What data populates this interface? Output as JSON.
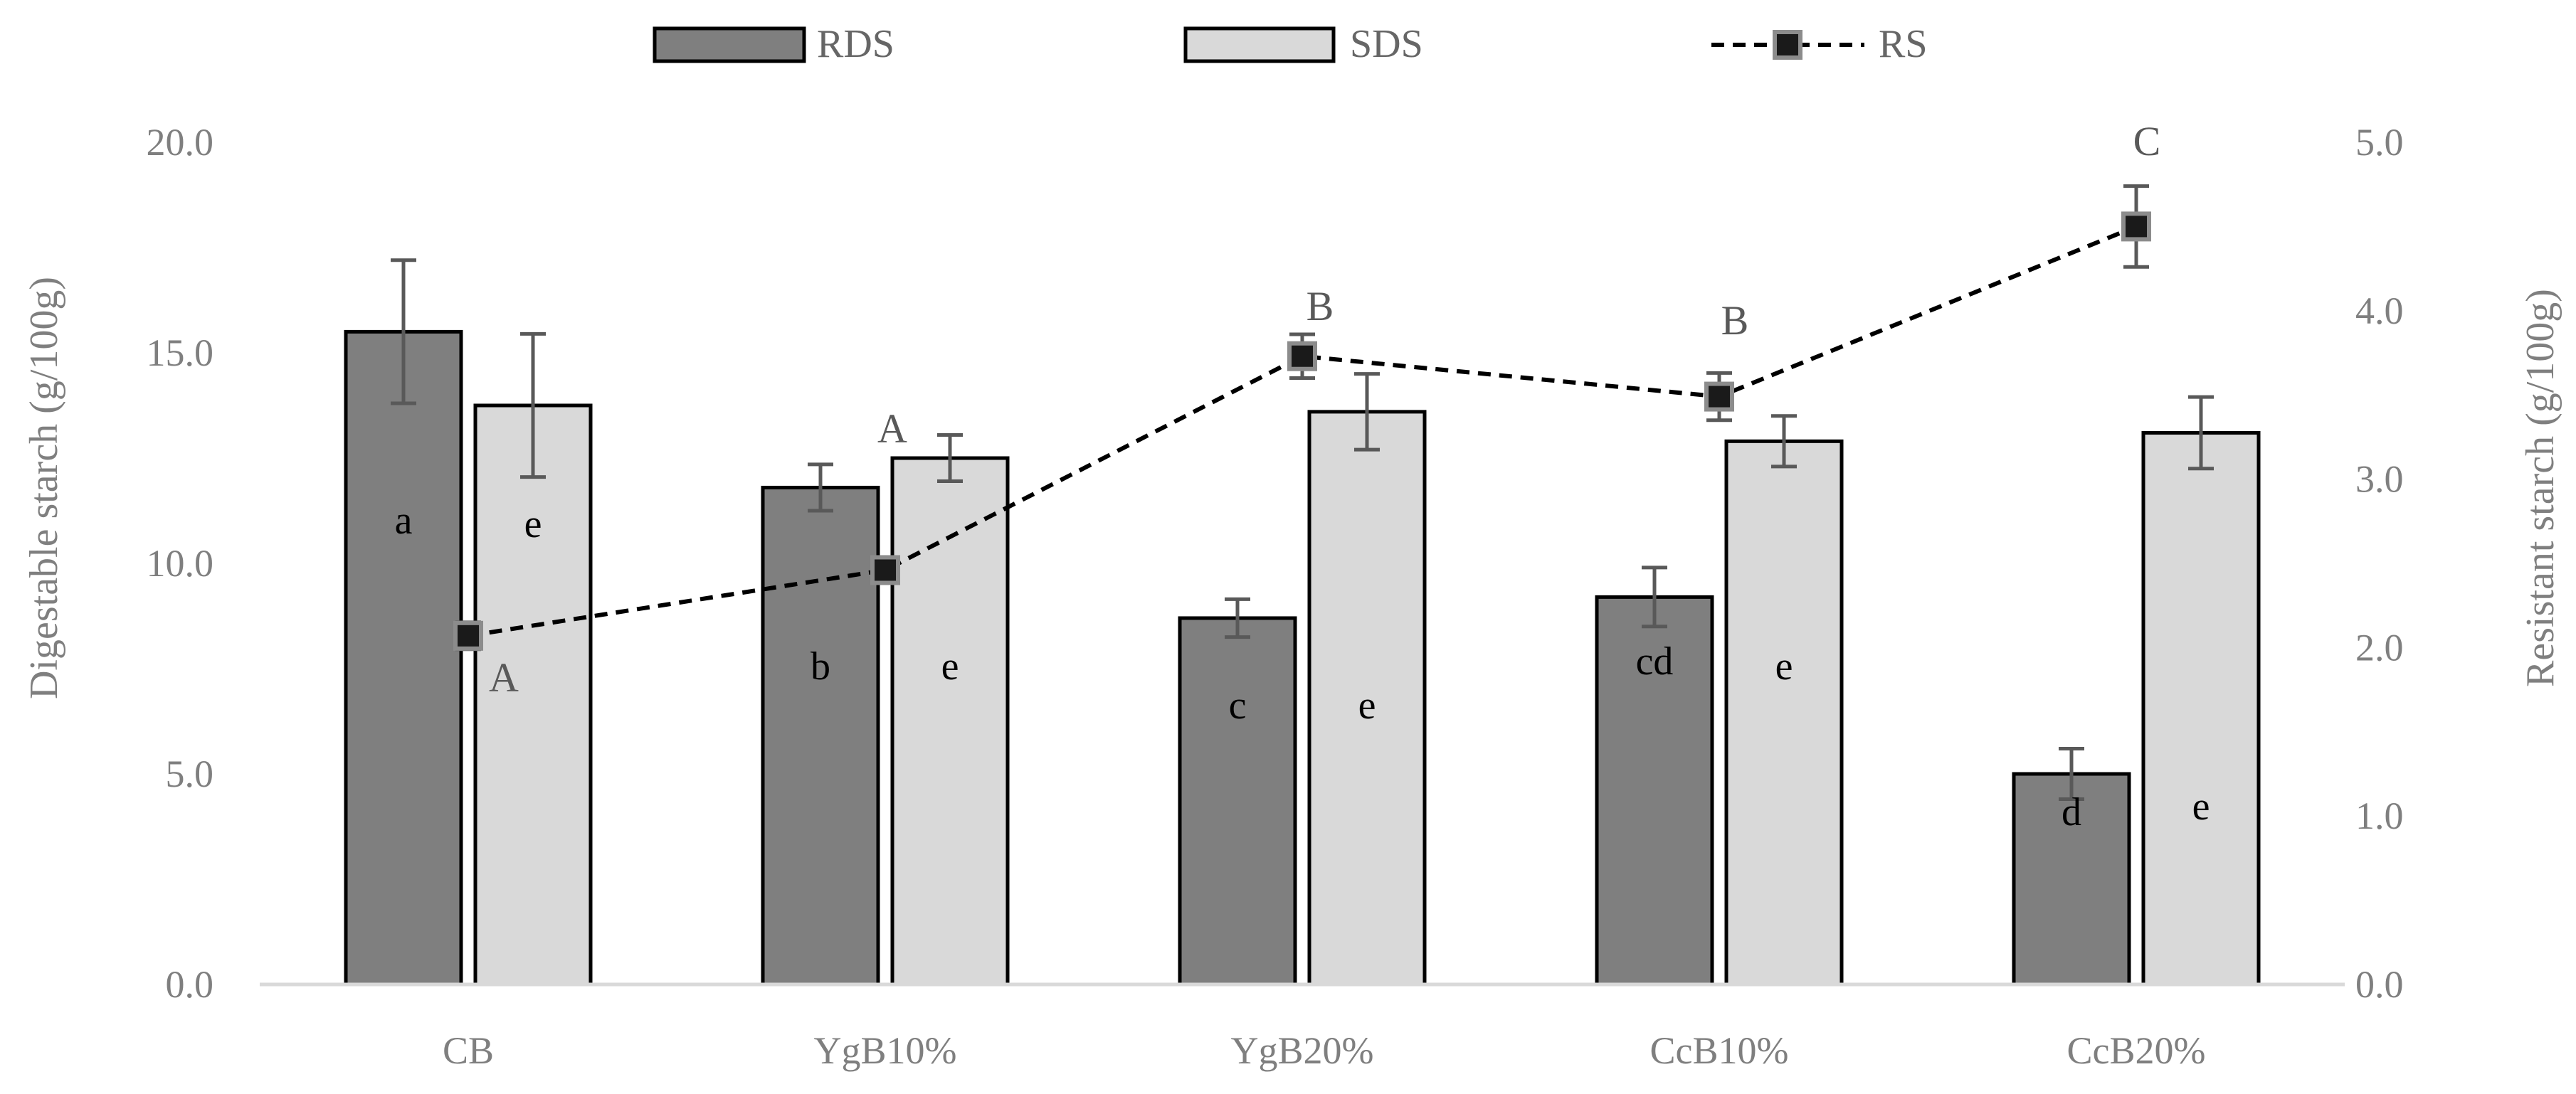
{
  "chart_data": {
    "type": "bar",
    "categories": [
      "CB",
      "YgB10%",
      "YgB20%",
      "CcB10%",
      "CcB20%"
    ],
    "ylabel": "Digestable starch (g/100g)",
    "y2label": "Resistant starch (g/100g)",
    "ylim": [
      0,
      20
    ],
    "y2lim": [
      0,
      5
    ],
    "yticks": [
      "0.0",
      "5.0",
      "10.0",
      "15.0",
      "20.0"
    ],
    "y2ticks": [
      "0.0",
      "1.0",
      "2.0",
      "3.0",
      "4.0",
      "5.0"
    ],
    "legend_position": "top-center",
    "colors": {
      "RDS": "#7f7f7f",
      "SDS": "#d9d9d9",
      "RS_marker": "#1a1a1a",
      "RS_marker_border": "#8c8c8c",
      "line": "#000000",
      "error": "#595959",
      "axis": "#d9d9d9"
    },
    "series": [
      {
        "name": "RDS",
        "kind": "bar",
        "axis": "left",
        "values": [
          15.5,
          11.8,
          8.7,
          9.2,
          5.0
        ],
        "errors": [
          1.7,
          0.55,
          0.45,
          0.7,
          0.6
        ],
        "letters": [
          "a",
          "b",
          "c",
          "cd",
          "d"
        ]
      },
      {
        "name": "SDS",
        "kind": "bar",
        "axis": "left",
        "values": [
          13.75,
          12.5,
          13.6,
          12.9,
          13.1
        ],
        "errors": [
          1.7,
          0.55,
          0.9,
          0.6,
          0.85
        ],
        "letters": [
          "e",
          "e",
          "e",
          "e",
          "e"
        ]
      },
      {
        "name": "RS",
        "kind": "line",
        "axis": "right",
        "style": "dashed",
        "values": [
          2.07,
          2.46,
          3.73,
          3.49,
          4.5
        ],
        "errors": [
          0.08,
          0.06,
          0.13,
          0.14,
          0.24
        ],
        "letters": [
          "A",
          "A",
          "B",
          "B",
          "C"
        ]
      }
    ]
  }
}
